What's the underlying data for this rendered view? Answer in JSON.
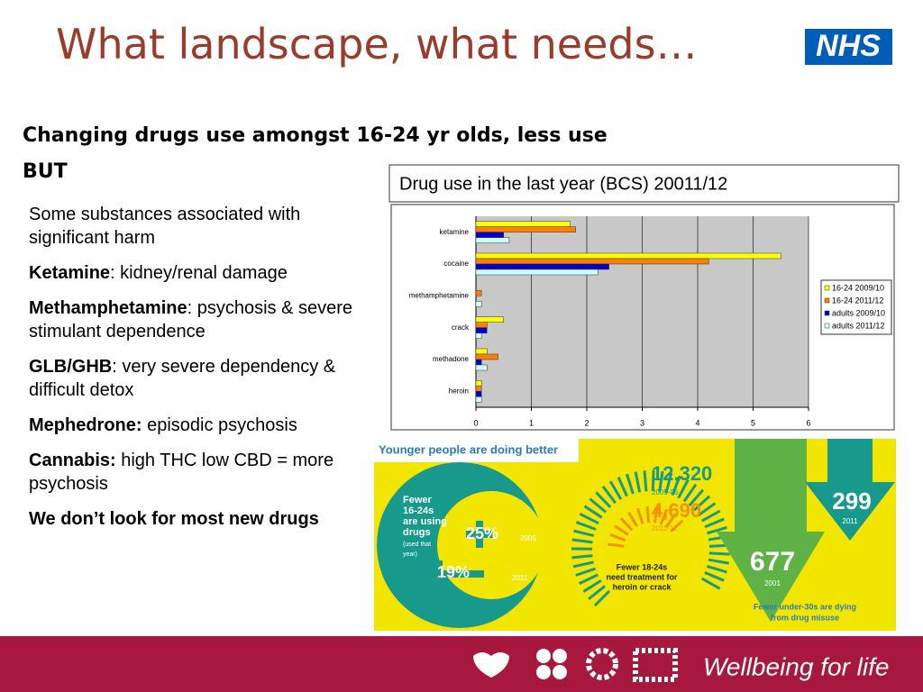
{
  "header": {
    "title": "What landscape, what needs…",
    "logo": "NHS"
  },
  "subtitle": [
    "Changing drugs use amongst 16-24 yr olds, less use",
    "BUT"
  ],
  "bullets": [
    {
      "text": "Some substances associated with significant harm"
    },
    {
      "term": "Ketamine",
      "text": ": kidney/renal damage"
    },
    {
      "term": "Methamphetamine",
      "text": ": psychosis & severe stimulant dependence"
    },
    {
      "term": "GLB/GHB",
      "text": ": very severe dependency & difficult detox"
    },
    {
      "term": "Mephedrone:",
      "text": " episodic psychosis"
    },
    {
      "term": "Cannabis:",
      "text": " high THC low CBD = more psychosis"
    },
    {
      "term": "We don’t look for most new drugs"
    }
  ],
  "chart_data": {
    "type": "hbar",
    "title": "Drug use in the last year (BCS) 20011/12",
    "categories": [
      "ketamine",
      "cocaine",
      "methamphetamine",
      "crack",
      "methadone",
      "heroin"
    ],
    "series": [
      {
        "name": "16-24 2009/10",
        "color": "#ffff00",
        "values": [
          1.7,
          5.5,
          0,
          0.5,
          0.2,
          0.1
        ]
      },
      {
        "name": "16-24 2011/12",
        "color": "#ff8000",
        "values": [
          1.8,
          4.2,
          0.1,
          0.2,
          0.4,
          0.1
        ]
      },
      {
        "name": "adults 2009/10",
        "color": "#0000cc",
        "values": [
          0.5,
          2.4,
          0,
          0.2,
          0.1,
          0.1
        ]
      },
      {
        "name": "adults 2011/12",
        "color": "#ccffff",
        "values": [
          0.6,
          2.2,
          0.1,
          0.1,
          0.2,
          0.1
        ]
      }
    ],
    "xlim": [
      0,
      6
    ],
    "xticks": [
      0,
      1,
      2,
      3,
      4,
      5,
      6
    ],
    "grid": true,
    "legend": "right"
  },
  "infographic": {
    "heading": "Younger people are doing better",
    "users": {
      "lines": [
        "Fewer",
        "16-24s",
        "are using",
        "drugs"
      ],
      "note": [
        "(used that",
        "year)"
      ],
      "pct_2005": "25%",
      "year_2005": "2005",
      "pct_2011": "19%",
      "year_2011": "2011"
    },
    "treatment": {
      "count_1": "12,320",
      "period_1": "2005-06",
      "count_2": "4,690",
      "period_2": "2011-12",
      "lines": [
        "Fewer 18-24s",
        "need treatment for",
        "heroin or crack"
      ]
    },
    "deaths": {
      "count_2001": "677",
      "year_2001": "2001",
      "count_2011": "299",
      "year_2011": "2011",
      "lines": [
        "Fewer under-30s are dying",
        "from drug misuse"
      ]
    }
  },
  "footer": {
    "slogan": "Wellbeing for life"
  }
}
